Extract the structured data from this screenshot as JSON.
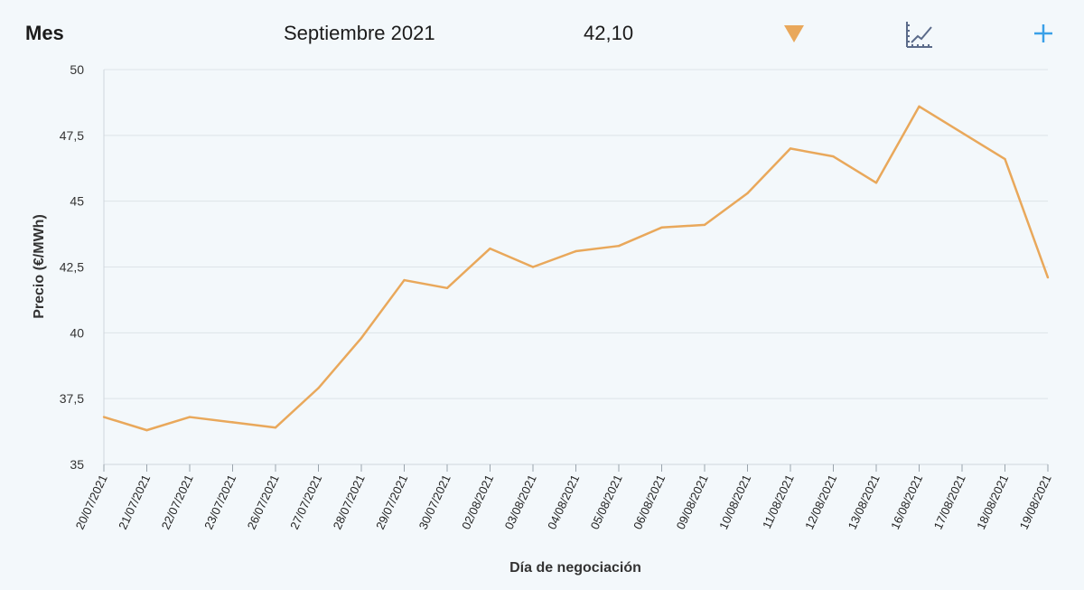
{
  "header": {
    "label": "Mes",
    "month": "Septiembre 2021",
    "value": "42,10",
    "trend_icon": "triangle-down-icon",
    "chart_icon": "line-chart-icon",
    "add_icon": "plus-icon"
  },
  "colors": {
    "line": "#e9a85b",
    "trend": "#e9a85b",
    "add": "#3aa0e8",
    "chart_icon": "#5b6b8a"
  },
  "chart_data": {
    "type": "line",
    "title": "",
    "xlabel": "Día de negociación",
    "ylabel": "Precio (€/MWh)",
    "ylim": [
      35,
      50
    ],
    "yticks": [
      35,
      37.5,
      40,
      42.5,
      45,
      47.5,
      50
    ],
    "ytick_labels": [
      "35",
      "37,5",
      "40",
      "42,5",
      "45",
      "47,5",
      "50"
    ],
    "grid": true,
    "categories": [
      "20/07/2021",
      "21/07/2021",
      "22/07/2021",
      "23/07/2021",
      "26/07/2021",
      "27/07/2021",
      "28/07/2021",
      "29/07/2021",
      "30/07/2021",
      "02/08/2021",
      "03/08/2021",
      "04/08/2021",
      "05/08/2021",
      "06/08/2021",
      "09/08/2021",
      "10/08/2021",
      "11/08/2021",
      "12/08/2021",
      "13/08/2021",
      "16/08/2021",
      "17/08/2021",
      "18/08/2021",
      "19/08/2021"
    ],
    "values": [
      36.8,
      36.3,
      36.8,
      36.6,
      36.4,
      37.9,
      39.8,
      42.0,
      41.7,
      43.2,
      42.5,
      43.1,
      43.3,
      44.0,
      44.1,
      45.3,
      47.0,
      46.7,
      45.7,
      48.6,
      47.6,
      46.6,
      42.1
    ]
  }
}
